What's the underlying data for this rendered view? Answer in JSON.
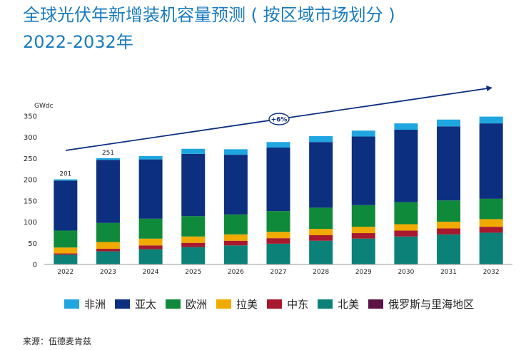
{
  "title": {
    "line1": "全球光伏年新增装机容量预测 ( 按区域市场划分 )",
    "line2": "2022-2032年"
  },
  "source": "来源：伍德麦肯兹",
  "chart_data": {
    "type": "bar",
    "stacked": true,
    "categories": [
      "2022",
      "2023",
      "2024",
      "2025",
      "2026",
      "2027",
      "2028",
      "2029",
      "2030",
      "2031",
      "2032"
    ],
    "unit": "GWdc",
    "ylim": [
      0,
      350
    ],
    "yticks": [
      0,
      50,
      100,
      150,
      200,
      250,
      300,
      350
    ],
    "grid": false,
    "legend_position": "bottom",
    "series": [
      {
        "name": "俄罗斯与里海地区",
        "color": "#5c1444",
        "values": [
          1,
          1,
          1,
          1,
          1,
          1,
          1,
          1,
          1,
          1,
          1
        ]
      },
      {
        "name": "北美",
        "color": "#0b8178",
        "values": [
          22,
          30,
          35,
          40,
          44,
          48,
          55,
          60,
          65,
          70,
          74
        ]
      },
      {
        "name": "中东",
        "color": "#a6192e",
        "values": [
          3,
          6,
          9,
          10,
          11,
          13,
          13,
          13,
          14,
          14,
          14
        ]
      },
      {
        "name": "拉美",
        "color": "#f0aa00",
        "values": [
          14,
          16,
          16,
          15,
          15,
          15,
          15,
          15,
          15,
          16,
          18
        ]
      },
      {
        "name": "欧洲",
        "color": "#0f8a3a",
        "values": [
          40,
          45,
          47,
          48,
          47,
          49,
          50,
          51,
          52,
          50,
          48
        ]
      },
      {
        "name": "亚太",
        "color": "#0d2f7f",
        "values": [
          118,
          149,
          140,
          147,
          141,
          150,
          155,
          162,
          171,
          175,
          178
        ]
      },
      {
        "name": "非洲",
        "color": "#1fa6e0",
        "values": [
          3,
          4,
          8,
          12,
          13,
          13,
          14,
          14,
          15,
          16,
          16
        ]
      }
    ],
    "legend_order": [
      "非洲",
      "亚太",
      "欧洲",
      "拉美",
      "中东",
      "北美",
      "俄罗斯与里海地区"
    ],
    "data_labels": [
      {
        "category": "2022",
        "text": "201"
      },
      {
        "category": "2023",
        "text": "251"
      }
    ],
    "trend_annotation": "+6%"
  }
}
